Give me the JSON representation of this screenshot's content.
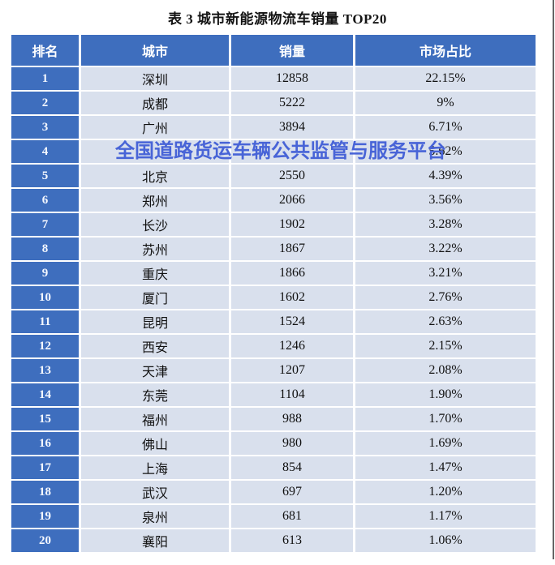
{
  "title": "表 3 城市新能源物流车销量 TOP20",
  "watermark": {
    "text": "全国道路货运车辆公共监管与服务平台",
    "color": "#4864d7"
  },
  "colors": {
    "header_bg": "#3e6ebe",
    "rank_bg": "#3e6ebe",
    "cell_bg": "#d9e0ed",
    "header_text": "#ffffff",
    "watermark_text": "#4864d7"
  },
  "table": {
    "headers": [
      "排名",
      "城市",
      "销量",
      "市场占比"
    ],
    "rows": [
      {
        "rank": "1",
        "city": "深圳",
        "sales": "12858",
        "share": "22.15%"
      },
      {
        "rank": "2",
        "city": "成都",
        "sales": "5222",
        "share": "9%"
      },
      {
        "rank": "3",
        "city": "广州",
        "sales": "3894",
        "share": "6.71%"
      },
      {
        "rank": "4",
        "city": "",
        "sales": "",
        "share": "5.62%"
      },
      {
        "rank": "5",
        "city": "北京",
        "sales": "2550",
        "share": "4.39%"
      },
      {
        "rank": "6",
        "city": "郑州",
        "sales": "2066",
        "share": "3.56%"
      },
      {
        "rank": "7",
        "city": "长沙",
        "sales": "1902",
        "share": "3.28%"
      },
      {
        "rank": "8",
        "city": "苏州",
        "sales": "1867",
        "share": "3.22%"
      },
      {
        "rank": "9",
        "city": "重庆",
        "sales": "1866",
        "share": "3.21%"
      },
      {
        "rank": "10",
        "city": "厦门",
        "sales": "1602",
        "share": "2.76%"
      },
      {
        "rank": "11",
        "city": "昆明",
        "sales": "1524",
        "share": "2.63%"
      },
      {
        "rank": "12",
        "city": "西安",
        "sales": "1246",
        "share": "2.15%"
      },
      {
        "rank": "13",
        "city": "天津",
        "sales": "1207",
        "share": "2.08%"
      },
      {
        "rank": "14",
        "city": "东莞",
        "sales": "1104",
        "share": "1.90%"
      },
      {
        "rank": "15",
        "city": "福州",
        "sales": "988",
        "share": "1.70%"
      },
      {
        "rank": "16",
        "city": "佛山",
        "sales": "980",
        "share": "1.69%"
      },
      {
        "rank": "17",
        "city": "上海",
        "sales": "854",
        "share": "1.47%"
      },
      {
        "rank": "18",
        "city": "武汉",
        "sales": "697",
        "share": "1.20%"
      },
      {
        "rank": "19",
        "city": "泉州",
        "sales": "681",
        "share": "1.17%"
      },
      {
        "rank": "20",
        "city": "襄阳",
        "sales": "613",
        "share": "1.06%"
      }
    ]
  },
  "chart_data": {
    "type": "table",
    "title": "表 3 城市新能源物流车销量 TOP20",
    "columns": [
      "排名",
      "城市",
      "销量",
      "市场占比"
    ],
    "rows": [
      [
        "1",
        "深圳",
        "12858",
        "22.15%"
      ],
      [
        "2",
        "成都",
        "5222",
        "9%"
      ],
      [
        "3",
        "广州",
        "3894",
        "6.71%"
      ],
      [
        "4",
        "",
        "",
        "5.62%"
      ],
      [
        "5",
        "北京",
        "2550",
        "4.39%"
      ],
      [
        "6",
        "郑州",
        "2066",
        "3.56%"
      ],
      [
        "7",
        "长沙",
        "1902",
        "3.28%"
      ],
      [
        "8",
        "苏州",
        "1867",
        "3.22%"
      ],
      [
        "9",
        "重庆",
        "1866",
        "3.21%"
      ],
      [
        "10",
        "厦门",
        "1602",
        "2.76%"
      ],
      [
        "11",
        "昆明",
        "1524",
        "2.63%"
      ],
      [
        "12",
        "西安",
        "1246",
        "2.15%"
      ],
      [
        "13",
        "天津",
        "1207",
        "2.08%"
      ],
      [
        "14",
        "东莞",
        "1104",
        "1.90%"
      ],
      [
        "15",
        "福州",
        "988",
        "1.70%"
      ],
      [
        "16",
        "佛山",
        "980",
        "1.69%"
      ],
      [
        "17",
        "上海",
        "854",
        "1.47%"
      ],
      [
        "18",
        "武汉",
        "697",
        "1.20%"
      ],
      [
        "19",
        "泉州",
        "681",
        "1.17%"
      ],
      [
        "20",
        "襄阳",
        "613",
        "1.06%"
      ]
    ],
    "notes_layout": "row 4 city and sales values are obscured by a blue watermark overlay"
  }
}
